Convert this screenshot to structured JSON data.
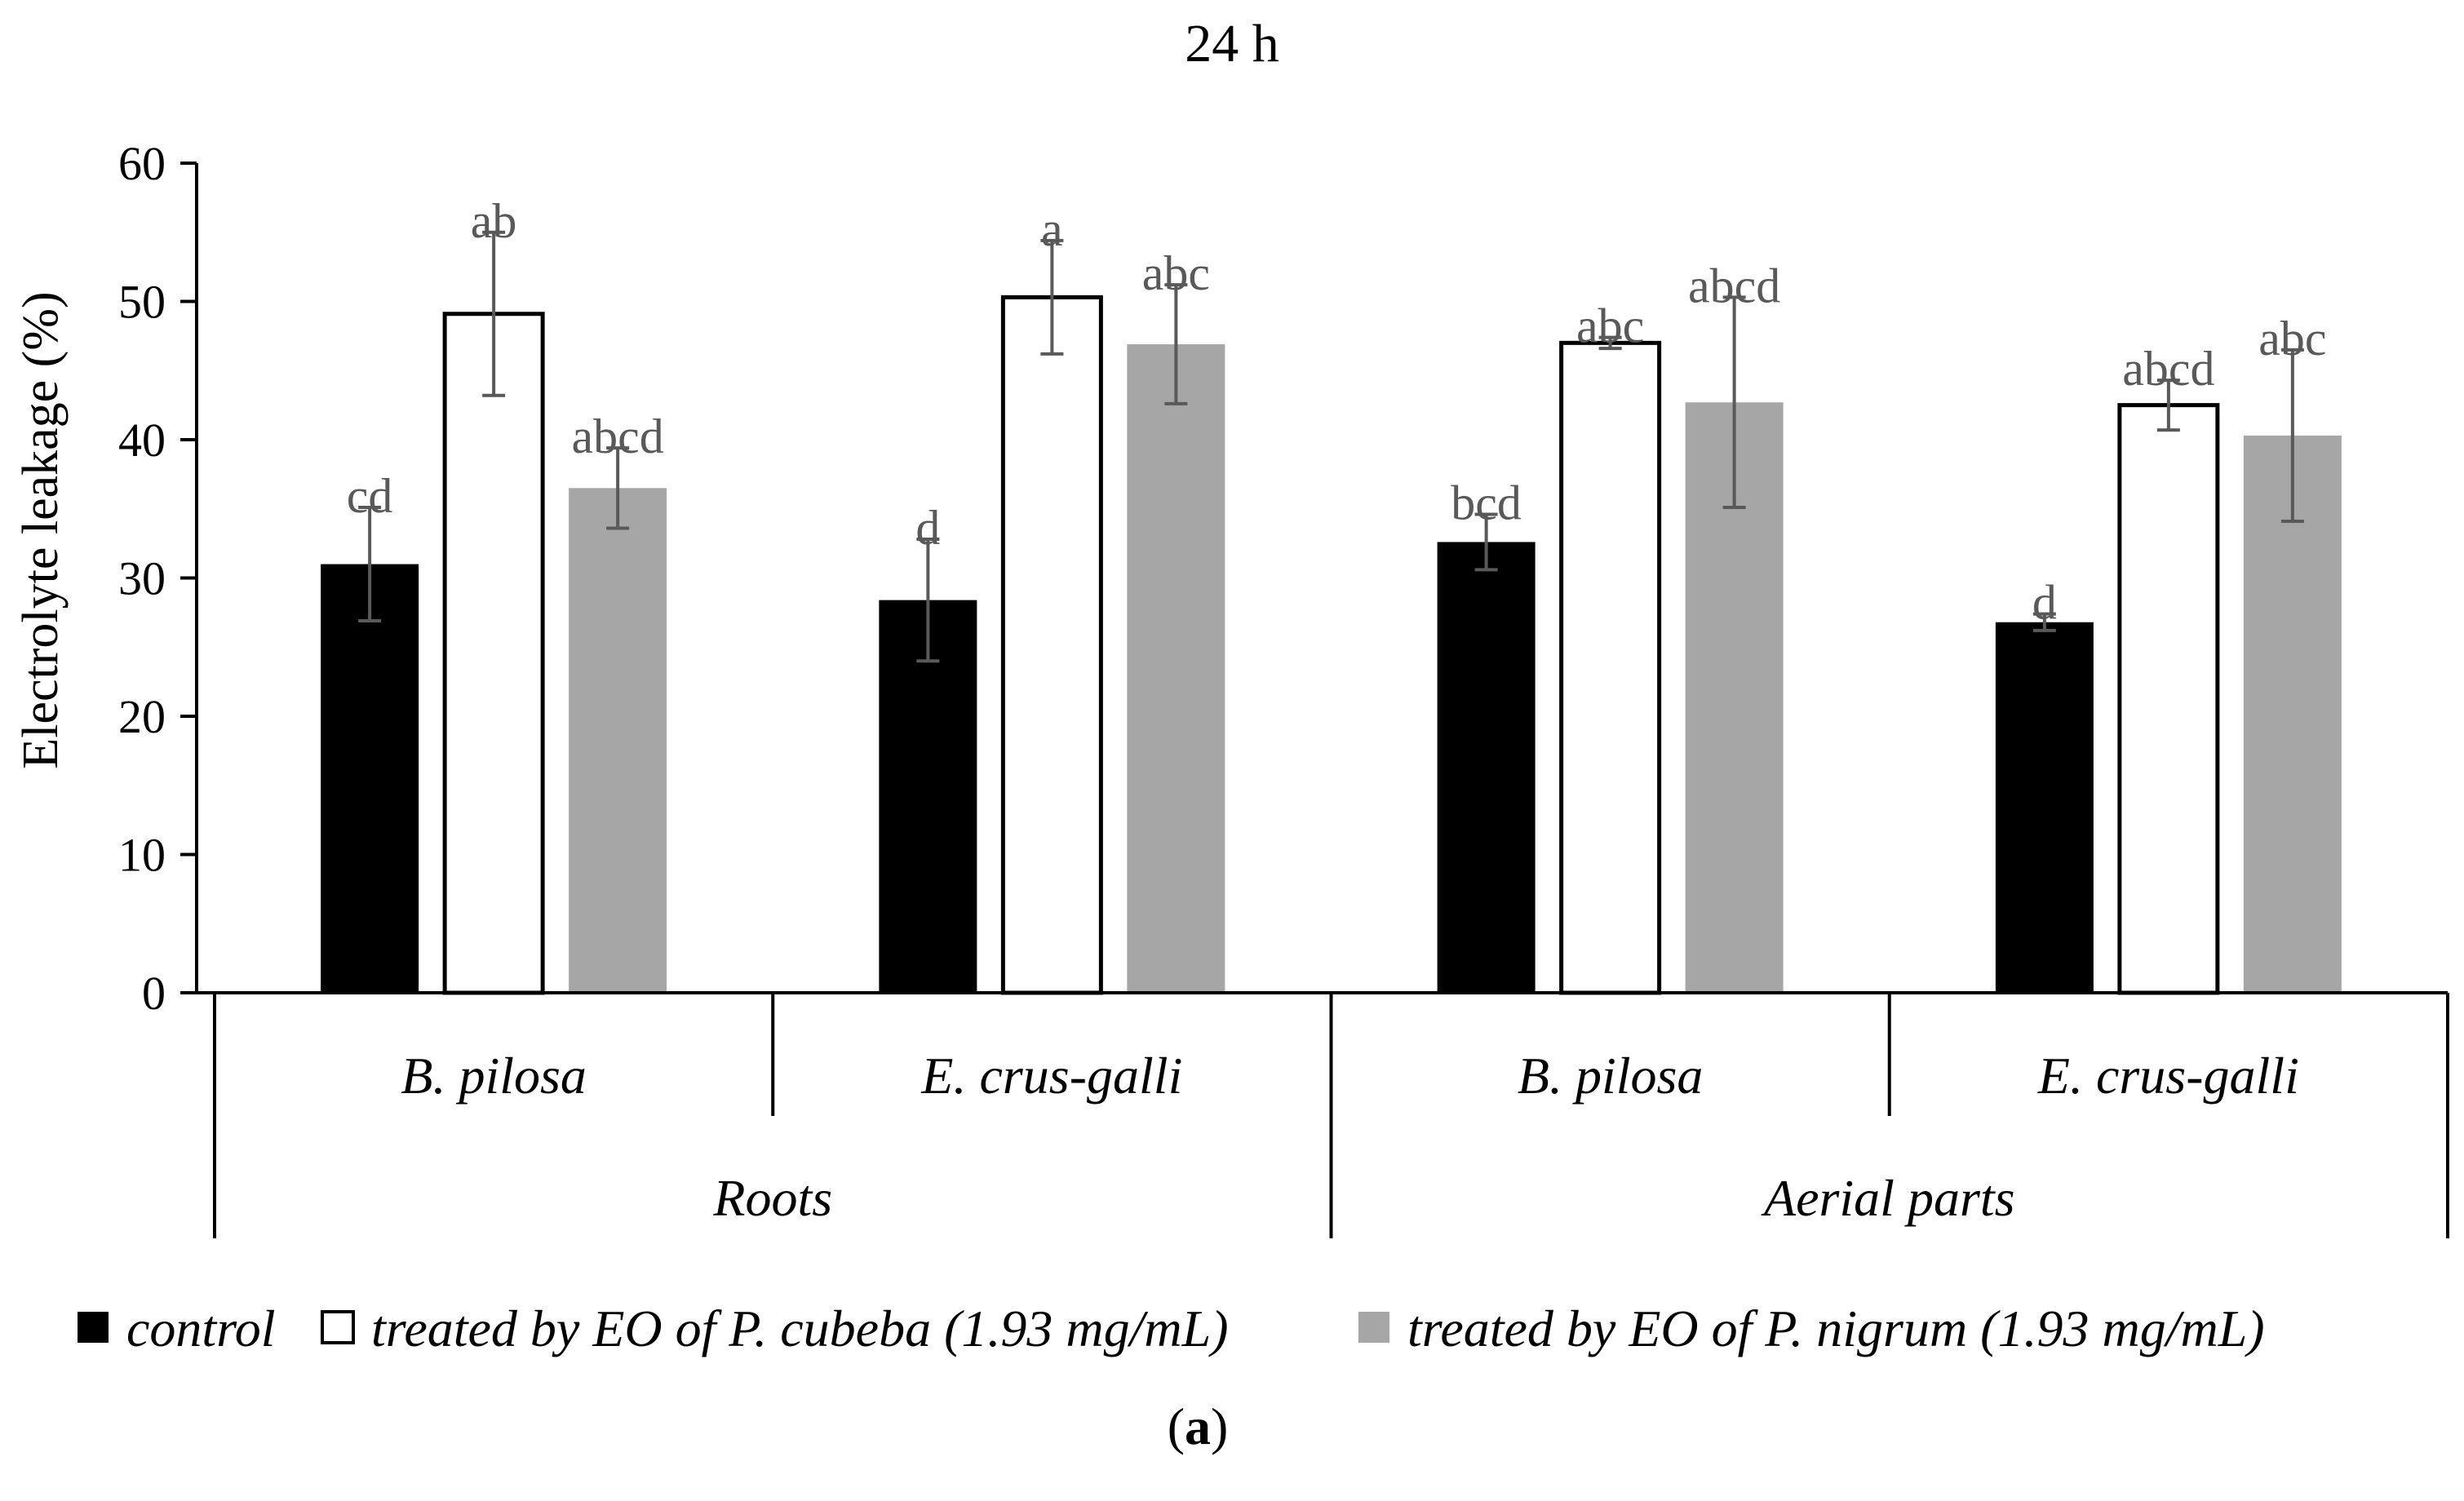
{
  "chart_data": {
    "type": "bar",
    "title": "24 h",
    "ylabel": "Electrolyte leakage (%)",
    "xlabel": "",
    "ylim": [
      0,
      60
    ],
    "yticks": [
      0,
      10,
      20,
      30,
      40,
      50,
      60
    ],
    "groups": [
      {
        "label": "Roots",
        "categories": [
          "B. pilosa",
          "E. crus-galli"
        ]
      },
      {
        "label": "Aerial parts",
        "categories": [
          "B. pilosa",
          "E. crus-galli"
        ]
      }
    ],
    "categories": [
      "B. pilosa",
      "E. crus-galli",
      "B. pilosa",
      "E. crus-galli"
    ],
    "series": [
      {
        "name": "control",
        "color": "#000000",
        "fill": "#000000",
        "values": [
          31.0,
          28.4,
          32.6,
          26.8
        ],
        "errors": [
          4.1,
          4.4,
          2.0,
          0.6
        ],
        "letters": [
          "cd",
          "d",
          "bcd",
          "d"
        ]
      },
      {
        "name": "treated by EO of P. cubeba (1.93 mg/mL)",
        "color": "#000000",
        "fill": "#ffffff",
        "values": [
          49.1,
          50.3,
          47.0,
          42.5
        ],
        "errors": [
          5.9,
          4.1,
          0.4,
          1.8
        ],
        "letters": [
          "ab",
          "a",
          "abc",
          "abcd"
        ]
      },
      {
        "name": "treated by EO of P. nigrum (1.93 mg/mL)",
        "color": "#a6a6a6",
        "fill": "#a6a6a6",
        "values": [
          36.5,
          46.9,
          42.7,
          40.3
        ],
        "errors": [
          2.9,
          4.3,
          7.6,
          6.2
        ],
        "letters": [
          "abcd",
          "abc",
          "abcd",
          "abc"
        ]
      }
    ],
    "error_bar_color": "#595959",
    "legend_position": "bottom"
  },
  "panel_label": {
    "open": "(",
    "letter": "a",
    "close": ")"
  }
}
